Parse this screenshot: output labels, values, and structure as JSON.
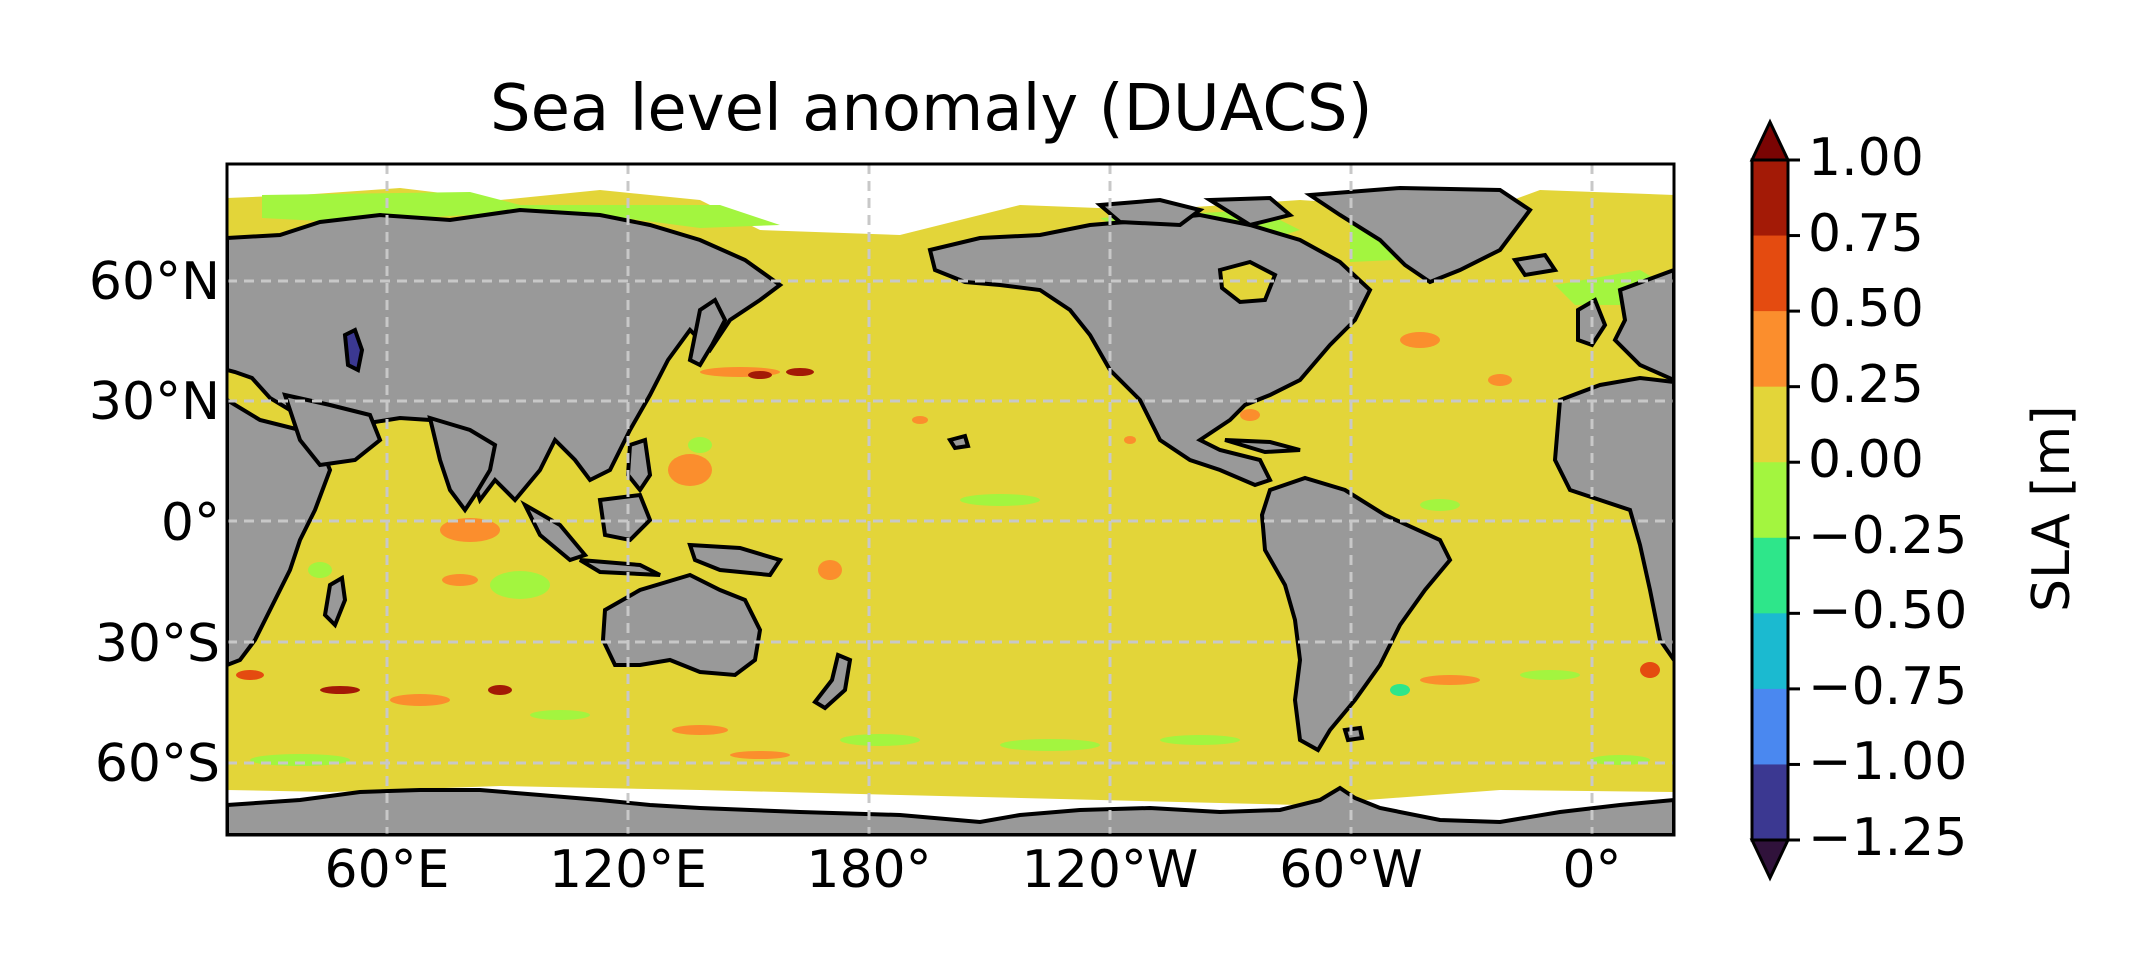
{
  "title": "Sea level anomaly (DUACS)",
  "map": {
    "projection": "PlateCarree",
    "central_longitude": 180,
    "ocean_color": "#e3d539",
    "land_color": "#999999",
    "coast_color": "#000000",
    "gridlines": "dashed",
    "lat_ticks": [
      "60°N",
      "30°N",
      "0°",
      "30°S",
      "60°S"
    ],
    "lon_ticks": [
      "60°E",
      "120°E",
      "180°",
      "120°W",
      "60°W",
      "0°"
    ]
  },
  "colorbar": {
    "label": "SLA [m]",
    "extend": "both",
    "ticks": [
      "1.00",
      "0.75",
      "0.50",
      "0.25",
      "0.00",
      "−0.25",
      "−0.50",
      "−0.75",
      "−1.00",
      "−1.25"
    ],
    "levels": [
      -1.25,
      -1.0,
      -0.75,
      -0.5,
      -0.25,
      0.0,
      0.25,
      0.5,
      0.75,
      1.0
    ],
    "colors": [
      "#3b3891",
      "#4a88f0",
      "#1bbad0",
      "#2ee68a",
      "#a3f53f",
      "#e3d539",
      "#fb8e2d",
      "#e44b10",
      "#a31a06"
    ],
    "under_color": "#30123b",
    "over_color": "#7a0403"
  }
}
